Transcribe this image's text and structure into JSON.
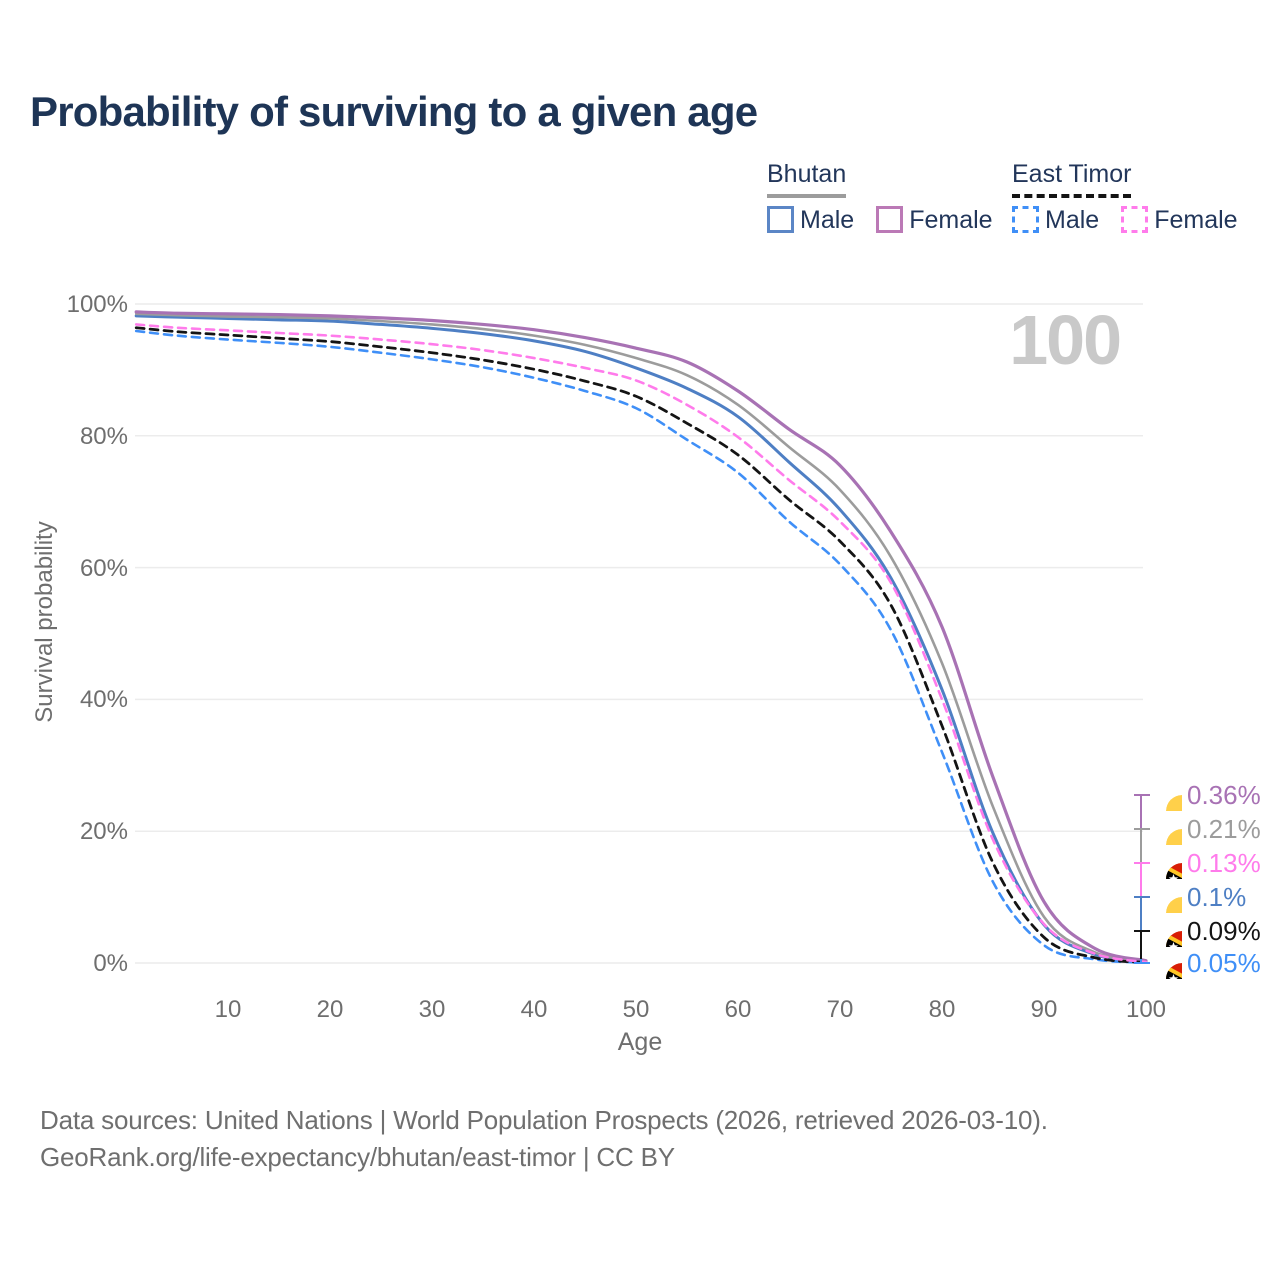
{
  "header": {
    "title": "Probability of surviving to a given age"
  },
  "legend": {
    "groups": [
      {
        "label": "Bhutan",
        "underline_color": "#9C9C9C",
        "underline_style": "solid",
        "items": [
          {
            "label": "Male",
            "color": "#5B86C6",
            "style": "solid"
          },
          {
            "label": "Female",
            "color": "#BB79B6",
            "style": "solid"
          }
        ]
      },
      {
        "label": "East Timor",
        "underline_color": "#141414",
        "underline_style": "dashed",
        "items": [
          {
            "label": "Male",
            "color": "#3F8FF7",
            "style": "dashed"
          },
          {
            "label": "Female",
            "color": "#FF7BEB",
            "style": "dashed"
          }
        ]
      }
    ]
  },
  "chart_data": {
    "type": "line",
    "title": "Probability of surviving to a given age",
    "xlabel": "Age",
    "ylabel": "Survival probability",
    "xlim": [
      1,
      100
    ],
    "ylim": [
      0,
      100
    ],
    "grid": "horizontal",
    "legend_position": "top-right",
    "hover_age_label": "100",
    "x_ticks": [
      10,
      20,
      30,
      40,
      50,
      60,
      70,
      80,
      90,
      100
    ],
    "y_ticks": [
      {
        "p": 0,
        "label": "0%"
      },
      {
        "p": 20,
        "label": "20%"
      },
      {
        "p": 40,
        "label": "40%"
      },
      {
        "p": 60,
        "label": "60%"
      },
      {
        "p": 80,
        "label": "80%"
      },
      {
        "p": 100,
        "label": "100%"
      }
    ],
    "x": [
      1,
      5,
      10,
      15,
      20,
      25,
      30,
      35,
      40,
      45,
      50,
      55,
      60,
      65,
      70,
      75,
      80,
      85,
      90,
      95,
      100
    ],
    "series": [
      {
        "name": "Bhutan Male",
        "country": "Bhutan",
        "sex": "male",
        "color": "#4E7FC4",
        "dash": "solid",
        "width": 3,
        "values": [
          98.2,
          98.0,
          97.8,
          97.6,
          97.4,
          96.9,
          96.3,
          95.5,
          94.4,
          92.8,
          90.3,
          87.2,
          82.9,
          76.0,
          68.8,
          58.4,
          41.5,
          19.7,
          5.8,
          1.3,
          0.1
        ]
      },
      {
        "name": "Bhutan",
        "country": "Bhutan",
        "sex": "both",
        "color": "#9C9C9C",
        "dash": "solid",
        "width": 2.6,
        "values": [
          98.5,
          98.3,
          98.1,
          98.0,
          97.8,
          97.4,
          96.9,
          96.2,
          95.2,
          93.8,
          91.8,
          89.2,
          84.7,
          78.3,
          71.8,
          61.6,
          45.5,
          23.7,
          7.0,
          1.6,
          0.21
        ]
      },
      {
        "name": "Bhutan Female",
        "country": "Bhutan",
        "sex": "female",
        "color": "#A872B4",
        "dash": "solid",
        "width": 3.2,
        "values": [
          98.8,
          98.6,
          98.5,
          98.4,
          98.2,
          97.9,
          97.5,
          96.9,
          96.1,
          94.9,
          93.3,
          91.2,
          86.8,
          81.0,
          75.5,
          65.4,
          51.0,
          28.2,
          9.3,
          2.2,
          0.36
        ]
      },
      {
        "name": "East Timor Male",
        "country": "East Timor",
        "sex": "male",
        "color": "#3F8FF7",
        "dash": "dashed",
        "width": 2.6,
        "values": [
          95.9,
          95.2,
          94.6,
          94.1,
          93.5,
          92.6,
          91.6,
          90.4,
          88.8,
          86.8,
          84.2,
          79.4,
          74.4,
          67.0,
          60.5,
          50.5,
          32.0,
          12.3,
          2.7,
          0.55,
          0.05
        ]
      },
      {
        "name": "East Timor",
        "country": "East Timor",
        "sex": "both",
        "color": "#141414",
        "dash": "dashed",
        "width": 2.8,
        "values": [
          96.4,
          95.8,
          95.3,
          94.8,
          94.3,
          93.5,
          92.6,
          91.5,
          90.1,
          88.3,
          86.0,
          81.9,
          77.1,
          70.3,
          64.0,
          54.3,
          36.0,
          15.2,
          3.9,
          0.8,
          0.09
        ]
      },
      {
        "name": "East Timor Female",
        "country": "East Timor",
        "sex": "female",
        "color": "#FF7BEB",
        "dash": "dashed",
        "width": 2.6,
        "values": [
          96.9,
          96.4,
          96.0,
          95.6,
          95.2,
          94.6,
          93.9,
          93.0,
          91.8,
          90.3,
          88.4,
          84.7,
          79.8,
          73.3,
          67.0,
          57.7,
          40.0,
          18.7,
          5.9,
          1.4,
          0.13
        ]
      }
    ],
    "end_labels": [
      {
        "label": "0.36%",
        "series": "Bhutan Female",
        "flag": "bhutan",
        "color": "#A872B4"
      },
      {
        "label": "0.21%",
        "series": "Bhutan",
        "flag": "bhutan",
        "color": "#9C9C9C"
      },
      {
        "label": "0.13%",
        "series": "East Timor Female",
        "flag": "east-timor",
        "color": "#FF7BEB"
      },
      {
        "label": "0.1%",
        "series": "Bhutan Male",
        "flag": "bhutan",
        "color": "#4E7FC4"
      },
      {
        "label": "0.09%",
        "series": "East Timor",
        "flag": "east-timor",
        "color": "#141414"
      },
      {
        "label": "0.05%",
        "series": "East Timor Male",
        "flag": "east-timor",
        "color": "#3F8FF7"
      }
    ]
  },
  "footer": {
    "line1": "Data sources: United Nations | World Population Prospects (2026, retrieved 2026-03-10).",
    "line2": "GeoRank.org/life-expectancy/bhutan/east-timor | CC BY"
  }
}
